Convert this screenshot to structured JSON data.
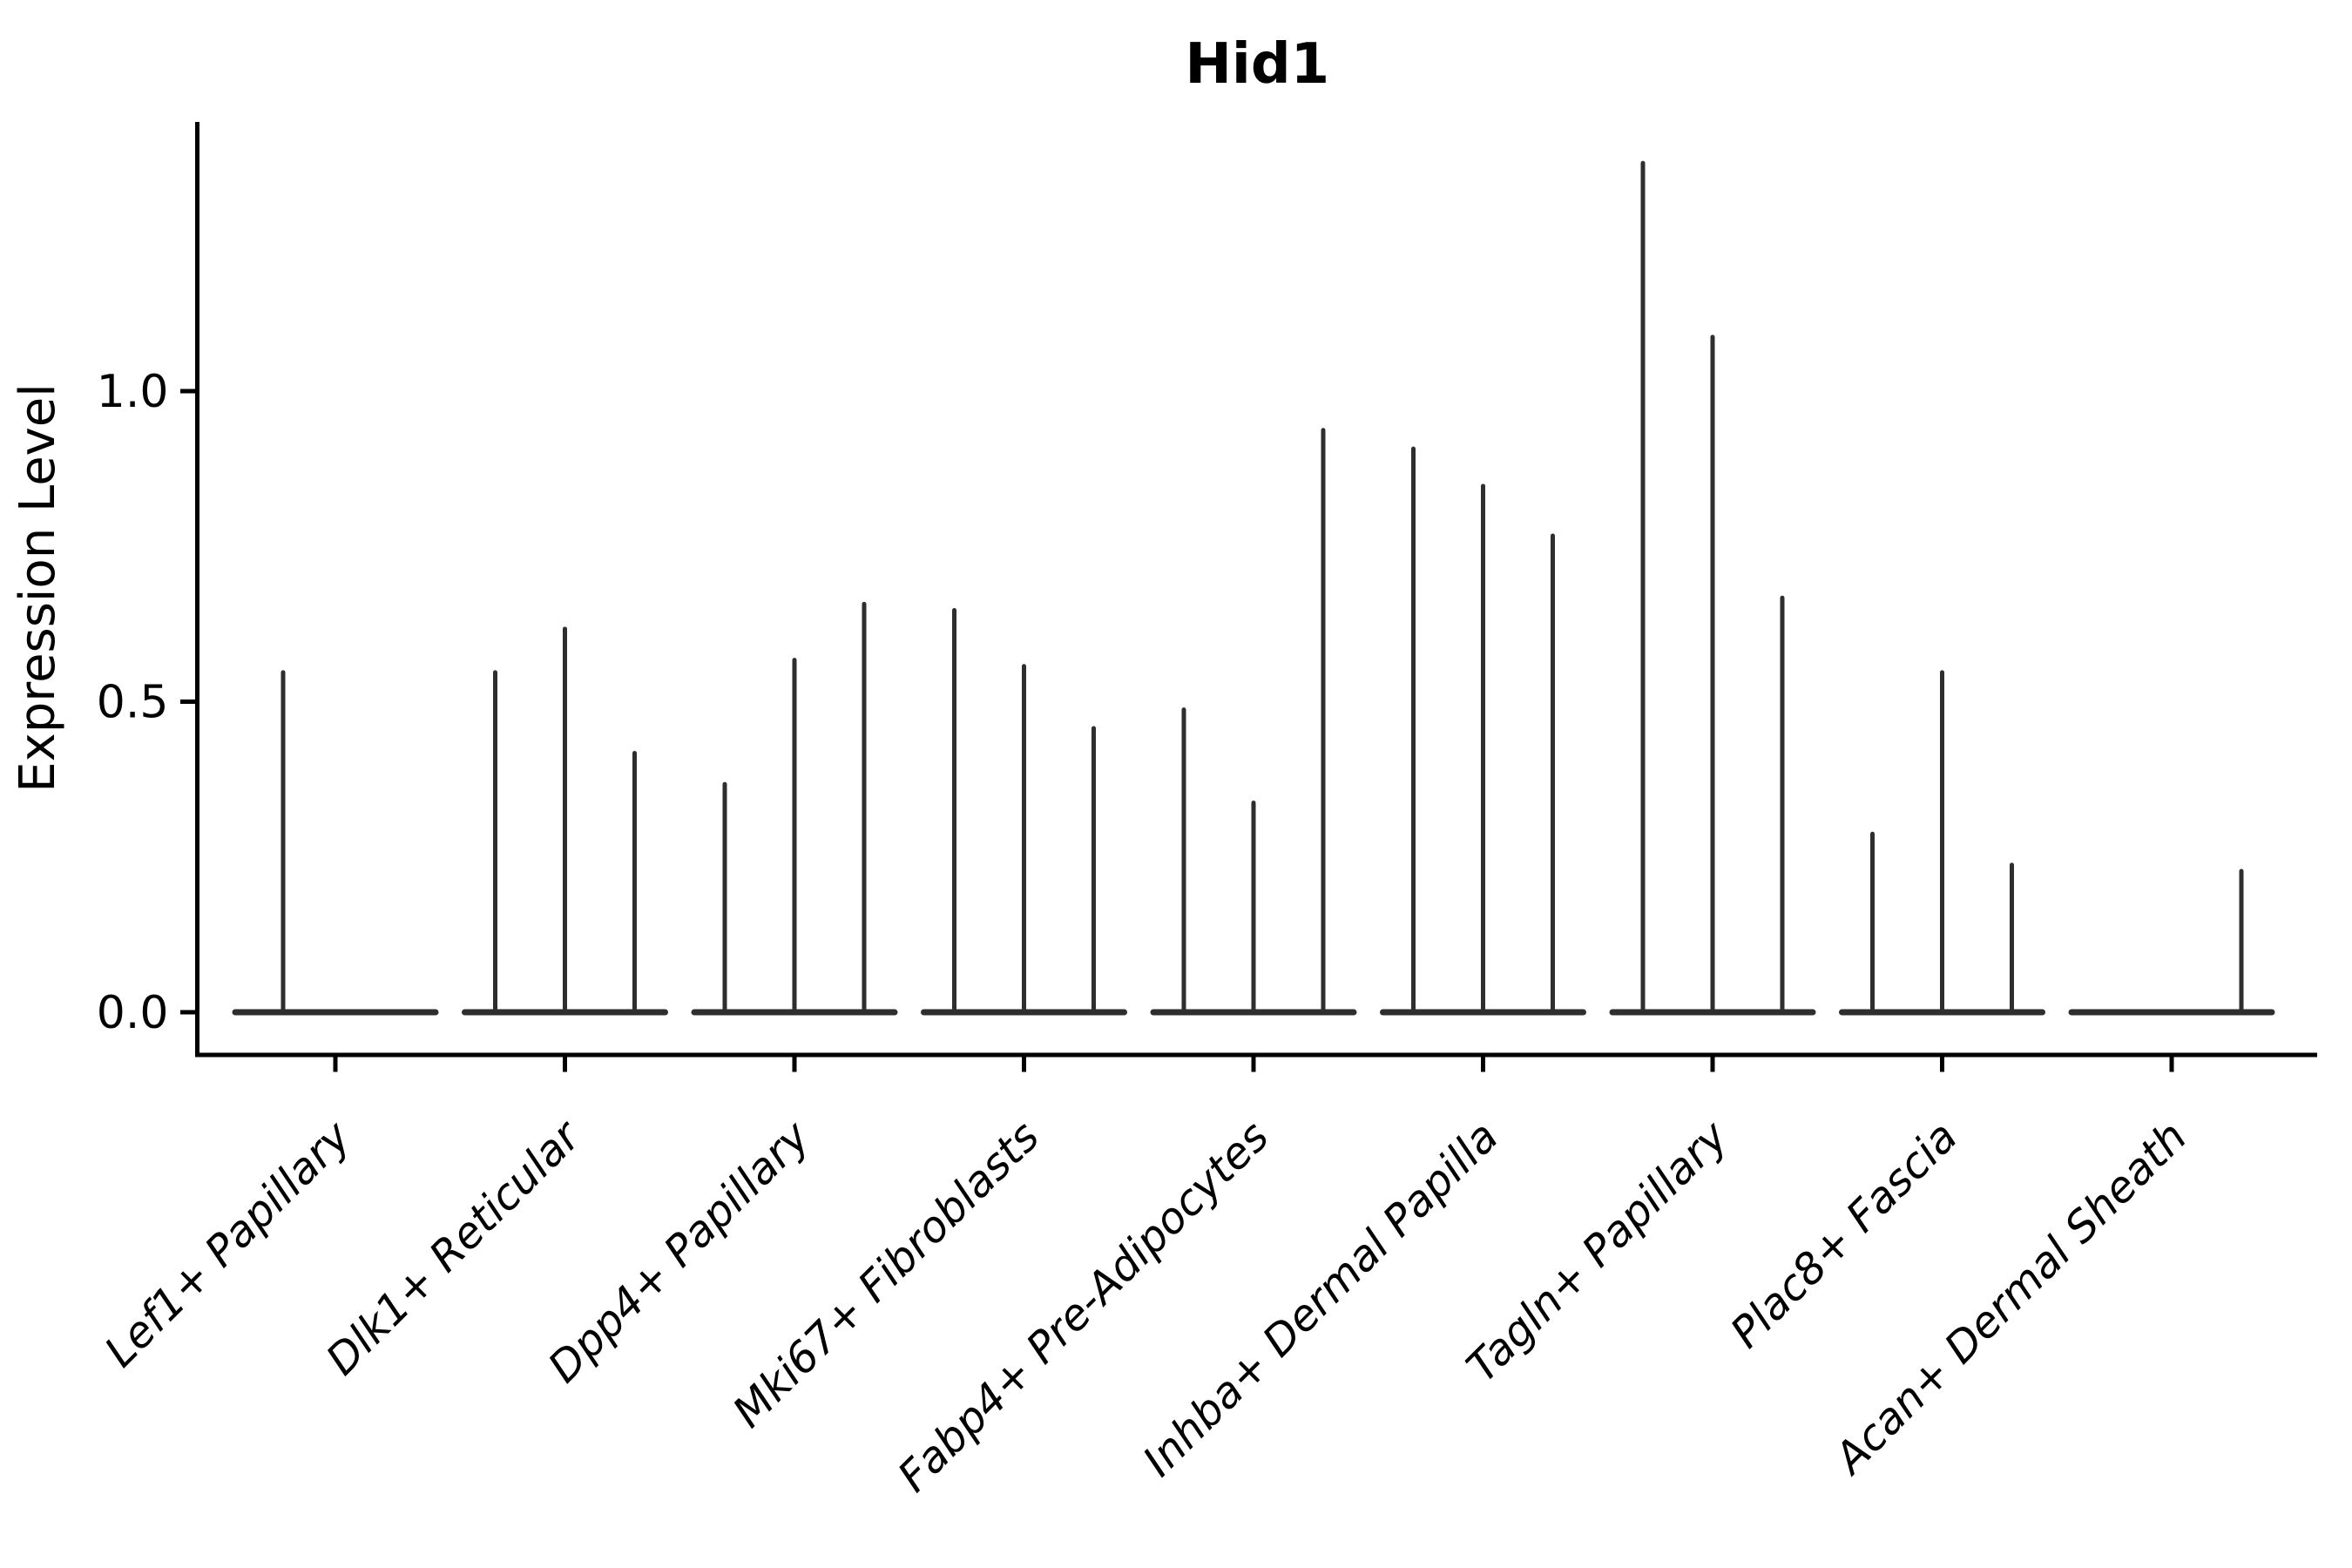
{
  "chart_data": {
    "type": "violin",
    "title": "Hid1",
    "ylabel": "Expression Level",
    "xlabel": "",
    "legend_position": "none",
    "grid": false,
    "background_color": "#ffffff",
    "axis_color": "#000000",
    "violin_color": "#2e2e2e",
    "ytick_labels": [
      "0.0",
      "0.5",
      "1.0"
    ],
    "ytick_values": [
      0.0,
      0.5,
      1.0
    ],
    "ylim": [
      -0.07,
      1.43
    ],
    "x_labels_rotation_deg": 45,
    "categories": [
      "Lef1+ Papillary",
      "Dlk1+ Reticular",
      "Dpp4+ Papillary",
      "Mki67+ Fibroblasts",
      "Fabp4+ Pre-Adipocytes",
      "Inhba+ Dermal Papilla",
      "Tagln+ Papillary",
      "Plac8+ Fascia",
      "Acan+ Dermal Sheath"
    ],
    "violin_max_expression_per_category": [
      [
        0.55,
        0.0
      ],
      [
        0.55,
        0.62,
        0.42
      ],
      [
        0.37,
        0.57,
        0.66
      ],
      [
        0.65,
        0.56,
        0.46
      ],
      [
        0.49,
        0.34,
        0.94
      ],
      [
        0.91,
        0.85,
        0.77
      ],
      [
        1.37,
        1.09,
        0.67
      ],
      [
        0.29,
        0.55,
        0.24
      ],
      [
        0.0,
        0.0,
        0.23
      ]
    ]
  }
}
